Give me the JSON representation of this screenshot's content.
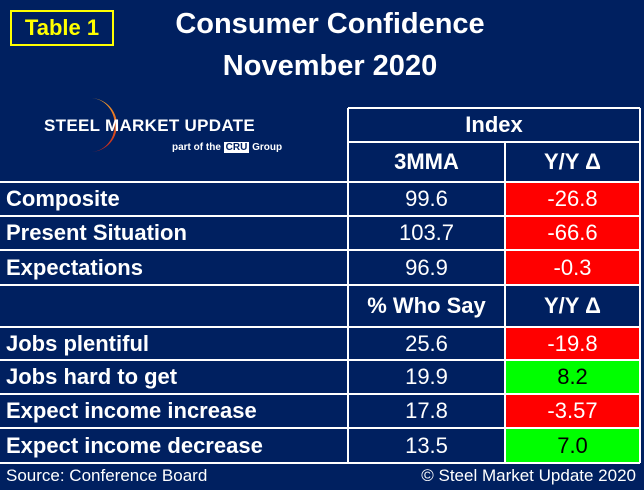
{
  "tag": "Table 1",
  "title_line1": "Consumer Confidence",
  "title_line2": "November 2020",
  "logo": {
    "name": "STEEL MARKET UPDATE",
    "tagline_pre": "part of the",
    "tagline_brand": "CRU",
    "tagline_post": "Group"
  },
  "colors": {
    "background": "#002060",
    "negative": "#ff0000",
    "positive": "#00ff00",
    "tag": "#ffff00"
  },
  "index_header": "Index",
  "section1": {
    "col1": "3MMA",
    "col2": "Y/Y Δ",
    "rows": [
      {
        "label": "Composite",
        "value": "99.6",
        "change": "-26.8",
        "status": "negative"
      },
      {
        "label": "Present Situation",
        "value": "103.7",
        "change": "-66.6",
        "status": "negative"
      },
      {
        "label": "Expectations",
        "value": "96.9",
        "change": "-0.3",
        "status": "negative"
      }
    ]
  },
  "section2": {
    "col1": "% Who Say",
    "col2": "Y/Y Δ",
    "rows": [
      {
        "label": "Jobs plentiful",
        "value": "25.6",
        "change": "-19.8",
        "status": "negative"
      },
      {
        "label": "Jobs hard to get",
        "value": "19.9",
        "change": "8.2",
        "status": "positive"
      },
      {
        "label": "Expect income increase",
        "value": "17.8",
        "change": "-3.57",
        "status": "negative"
      },
      {
        "label": "Expect income decrease",
        "value": "13.5",
        "change": "7.0",
        "status": "positive"
      }
    ]
  },
  "footer": {
    "source": "Source: Conference Board",
    "copyright": "© Steel Market Update 2020"
  }
}
